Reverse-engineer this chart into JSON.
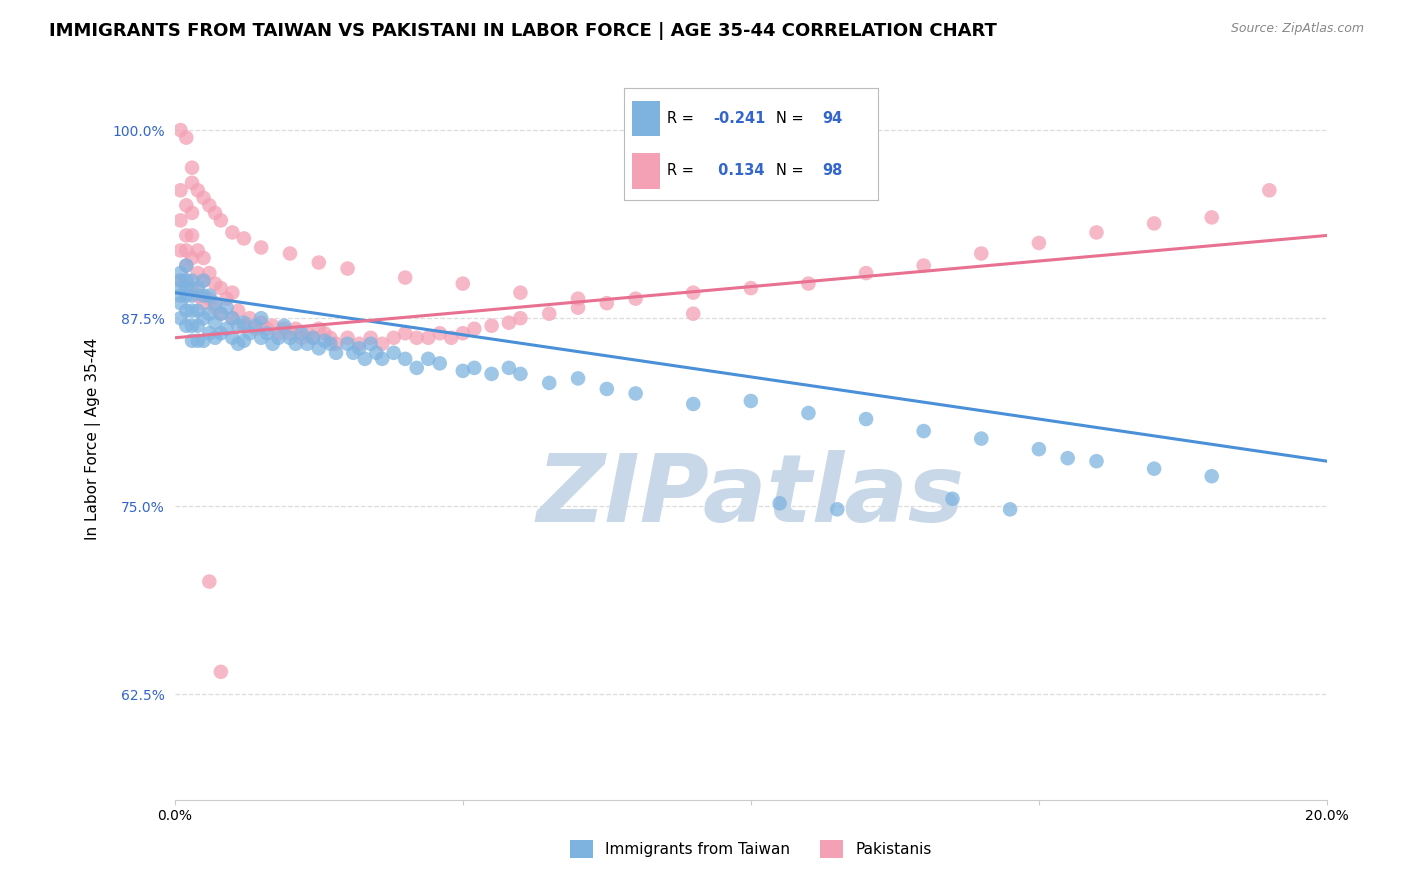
{
  "title": "IMMIGRANTS FROM TAIWAN VS PAKISTANI IN LABOR FORCE | AGE 35-44 CORRELATION CHART",
  "source": "Source: ZipAtlas.com",
  "ylabel": "In Labor Force | Age 35-44",
  "xlim": [
    0.0,
    0.2
  ],
  "ylim": [
    0.555,
    1.035
  ],
  "yticks": [
    0.625,
    0.75,
    0.875,
    1.0
  ],
  "ytick_labels": [
    "62.5%",
    "75.0%",
    "87.5%",
    "100.0%"
  ],
  "xticks": [
    0.0,
    0.05,
    0.1,
    0.15,
    0.2
  ],
  "xtick_labels": [
    "0.0%",
    "",
    "",
    "",
    "20.0%"
  ],
  "taiwan_R": -0.241,
  "taiwan_N": 94,
  "pakistani_R": 0.134,
  "pakistani_N": 98,
  "taiwan_color": "#7eb3e0",
  "pakistani_color": "#f4a0b5",
  "taiwan_line_color": "#4a90d9",
  "pakistani_line_color": "#e87090",
  "legend_R_color": "#3366cc",
  "watermark_color": "#c8d8e8",
  "background_color": "#ffffff",
  "grid_color": "#dddddd",
  "title_fontsize": 13,
  "axis_label_fontsize": 11,
  "tick_fontsize": 10,
  "taiwan_scatter_x": [
    0.001,
    0.001,
    0.001,
    0.001,
    0.001,
    0.001,
    0.002,
    0.002,
    0.002,
    0.002,
    0.002,
    0.002,
    0.003,
    0.003,
    0.003,
    0.003,
    0.003,
    0.004,
    0.004,
    0.004,
    0.004,
    0.005,
    0.005,
    0.005,
    0.005,
    0.006,
    0.006,
    0.006,
    0.007,
    0.007,
    0.007,
    0.008,
    0.008,
    0.009,
    0.009,
    0.01,
    0.01,
    0.011,
    0.011,
    0.012,
    0.012,
    0.013,
    0.014,
    0.015,
    0.015,
    0.016,
    0.017,
    0.018,
    0.019,
    0.02,
    0.021,
    0.022,
    0.023,
    0.024,
    0.025,
    0.026,
    0.027,
    0.028,
    0.03,
    0.031,
    0.032,
    0.033,
    0.034,
    0.035,
    0.036,
    0.038,
    0.04,
    0.042,
    0.044,
    0.046,
    0.05,
    0.052,
    0.055,
    0.058,
    0.06,
    0.065,
    0.07,
    0.075,
    0.08,
    0.09,
    0.1,
    0.11,
    0.12,
    0.13,
    0.14,
    0.15,
    0.155,
    0.16,
    0.17,
    0.18,
    0.105,
    0.115,
    0.135,
    0.145
  ],
  "taiwan_scatter_y": [
    0.905,
    0.895,
    0.885,
    0.875,
    0.9,
    0.89,
    0.91,
    0.9,
    0.89,
    0.88,
    0.87,
    0.895,
    0.9,
    0.89,
    0.88,
    0.87,
    0.86,
    0.895,
    0.88,
    0.87,
    0.86,
    0.9,
    0.89,
    0.875,
    0.86,
    0.89,
    0.878,
    0.865,
    0.885,
    0.872,
    0.862,
    0.878,
    0.865,
    0.882,
    0.868,
    0.875,
    0.862,
    0.87,
    0.858,
    0.872,
    0.86,
    0.865,
    0.87,
    0.862,
    0.875,
    0.865,
    0.858,
    0.862,
    0.87,
    0.862,
    0.858,
    0.865,
    0.858,
    0.862,
    0.855,
    0.86,
    0.858,
    0.852,
    0.858,
    0.852,
    0.855,
    0.848,
    0.858,
    0.852,
    0.848,
    0.852,
    0.848,
    0.842,
    0.848,
    0.845,
    0.84,
    0.842,
    0.838,
    0.842,
    0.838,
    0.832,
    0.835,
    0.828,
    0.825,
    0.818,
    0.82,
    0.812,
    0.808,
    0.8,
    0.795,
    0.788,
    0.782,
    0.78,
    0.775,
    0.77,
    0.752,
    0.748,
    0.755,
    0.748
  ],
  "pakistani_scatter_x": [
    0.001,
    0.001,
    0.001,
    0.001,
    0.002,
    0.002,
    0.002,
    0.002,
    0.002,
    0.003,
    0.003,
    0.003,
    0.003,
    0.004,
    0.004,
    0.004,
    0.005,
    0.005,
    0.005,
    0.006,
    0.006,
    0.007,
    0.007,
    0.008,
    0.008,
    0.009,
    0.01,
    0.01,
    0.011,
    0.012,
    0.013,
    0.014,
    0.015,
    0.016,
    0.017,
    0.018,
    0.019,
    0.02,
    0.021,
    0.022,
    0.023,
    0.024,
    0.025,
    0.026,
    0.027,
    0.028,
    0.03,
    0.032,
    0.034,
    0.036,
    0.038,
    0.04,
    0.042,
    0.044,
    0.046,
    0.048,
    0.05,
    0.052,
    0.055,
    0.058,
    0.06,
    0.065,
    0.07,
    0.075,
    0.08,
    0.09,
    0.1,
    0.11,
    0.12,
    0.13,
    0.14,
    0.15,
    0.16,
    0.17,
    0.18,
    0.19,
    0.001,
    0.002,
    0.003,
    0.003,
    0.004,
    0.005,
    0.006,
    0.007,
    0.008,
    0.01,
    0.012,
    0.015,
    0.02,
    0.025,
    0.03,
    0.04,
    0.05,
    0.06,
    0.07,
    0.09,
    0.006,
    0.008
  ],
  "pakistani_scatter_y": [
    0.96,
    0.94,
    0.92,
    0.9,
    0.95,
    0.93,
    0.92,
    0.91,
    0.9,
    0.945,
    0.93,
    0.915,
    0.895,
    0.92,
    0.905,
    0.89,
    0.915,
    0.9,
    0.885,
    0.905,
    0.888,
    0.898,
    0.882,
    0.895,
    0.878,
    0.888,
    0.892,
    0.875,
    0.88,
    0.87,
    0.875,
    0.868,
    0.872,
    0.868,
    0.87,
    0.865,
    0.868,
    0.865,
    0.868,
    0.862,
    0.865,
    0.862,
    0.868,
    0.865,
    0.862,
    0.858,
    0.862,
    0.858,
    0.862,
    0.858,
    0.862,
    0.865,
    0.862,
    0.862,
    0.865,
    0.862,
    0.865,
    0.868,
    0.87,
    0.872,
    0.875,
    0.878,
    0.882,
    0.885,
    0.888,
    0.892,
    0.895,
    0.898,
    0.905,
    0.91,
    0.918,
    0.925,
    0.932,
    0.938,
    0.942,
    0.96,
    1.0,
    0.995,
    0.975,
    0.965,
    0.96,
    0.955,
    0.95,
    0.945,
    0.94,
    0.932,
    0.928,
    0.922,
    0.918,
    0.912,
    0.908,
    0.902,
    0.898,
    0.892,
    0.888,
    0.878,
    0.7,
    0.64
  ]
}
